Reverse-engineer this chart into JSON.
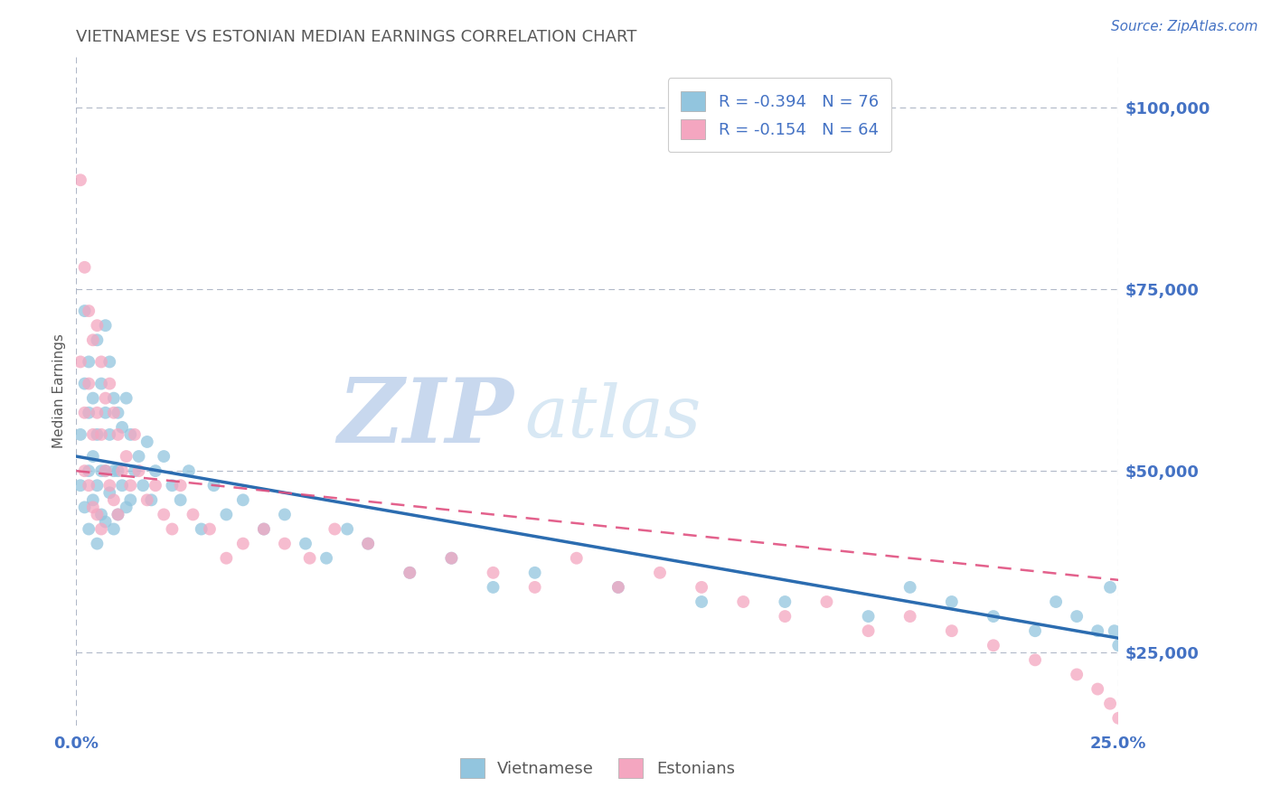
{
  "title": "VIETNAMESE VS ESTONIAN MEDIAN EARNINGS CORRELATION CHART",
  "source_text": "Source: ZipAtlas.com",
  "ylabel": "Median Earnings",
  "xlim": [
    0.0,
    0.25
  ],
  "ylim": [
    15000,
    107000
  ],
  "yticks": [
    25000,
    50000,
    75000,
    100000
  ],
  "ytick_labels": [
    "$25,000",
    "$50,000",
    "$75,000",
    "$100,000"
  ],
  "blue_color": "#92c5de",
  "pink_color": "#f4a6c0",
  "blue_line_color": "#2b6cb0",
  "pink_line_color": "#e05080",
  "axis_color": "#4472c4",
  "grid_color": "#b0b8c8",
  "title_color": "#595959",
  "r1": "-0.394",
  "n1": "76",
  "r2": "-0.154",
  "n2": "64",
  "legend_label1": "Vietnamese",
  "legend_label2": "Estonians",
  "watermark_zip": "ZIP",
  "watermark_atlas": "atlas",
  "watermark_color_zip": "#c8d8ee",
  "watermark_color_atlas": "#d8e8f4",
  "blue_intercept": 52000,
  "blue_slope": -100000,
  "pink_intercept": 50000,
  "pink_slope": -60000,
  "vietnamese_x": [
    0.001,
    0.001,
    0.002,
    0.002,
    0.002,
    0.003,
    0.003,
    0.003,
    0.003,
    0.004,
    0.004,
    0.004,
    0.005,
    0.005,
    0.005,
    0.005,
    0.006,
    0.006,
    0.006,
    0.007,
    0.007,
    0.007,
    0.007,
    0.008,
    0.008,
    0.008,
    0.009,
    0.009,
    0.009,
    0.01,
    0.01,
    0.01,
    0.011,
    0.011,
    0.012,
    0.012,
    0.013,
    0.013,
    0.014,
    0.015,
    0.016,
    0.017,
    0.018,
    0.019,
    0.021,
    0.023,
    0.025,
    0.027,
    0.03,
    0.033,
    0.036,
    0.04,
    0.045,
    0.05,
    0.055,
    0.06,
    0.065,
    0.07,
    0.08,
    0.09,
    0.1,
    0.11,
    0.13,
    0.15,
    0.17,
    0.19,
    0.2,
    0.21,
    0.22,
    0.23,
    0.235,
    0.24,
    0.245,
    0.248,
    0.249,
    0.25
  ],
  "vietnamese_y": [
    55000,
    48000,
    62000,
    45000,
    72000,
    58000,
    50000,
    65000,
    42000,
    60000,
    52000,
    46000,
    68000,
    55000,
    48000,
    40000,
    62000,
    50000,
    44000,
    70000,
    58000,
    50000,
    43000,
    65000,
    55000,
    47000,
    60000,
    50000,
    42000,
    58000,
    50000,
    44000,
    56000,
    48000,
    60000,
    45000,
    55000,
    46000,
    50000,
    52000,
    48000,
    54000,
    46000,
    50000,
    52000,
    48000,
    46000,
    50000,
    42000,
    48000,
    44000,
    46000,
    42000,
    44000,
    40000,
    38000,
    42000,
    40000,
    36000,
    38000,
    34000,
    36000,
    34000,
    32000,
    32000,
    30000,
    34000,
    32000,
    30000,
    28000,
    32000,
    30000,
    28000,
    34000,
    28000,
    26000
  ],
  "estonian_x": [
    0.001,
    0.001,
    0.002,
    0.002,
    0.002,
    0.003,
    0.003,
    0.003,
    0.004,
    0.004,
    0.004,
    0.005,
    0.005,
    0.005,
    0.006,
    0.006,
    0.006,
    0.007,
    0.007,
    0.008,
    0.008,
    0.009,
    0.009,
    0.01,
    0.01,
    0.011,
    0.012,
    0.013,
    0.014,
    0.015,
    0.017,
    0.019,
    0.021,
    0.023,
    0.025,
    0.028,
    0.032,
    0.036,
    0.04,
    0.045,
    0.05,
    0.056,
    0.062,
    0.07,
    0.08,
    0.09,
    0.1,
    0.11,
    0.12,
    0.13,
    0.14,
    0.15,
    0.16,
    0.17,
    0.18,
    0.19,
    0.2,
    0.21,
    0.22,
    0.23,
    0.24,
    0.245,
    0.248,
    0.25
  ],
  "estonian_y": [
    90000,
    65000,
    78000,
    58000,
    50000,
    72000,
    62000,
    48000,
    68000,
    55000,
    45000,
    70000,
    58000,
    44000,
    65000,
    55000,
    42000,
    60000,
    50000,
    62000,
    48000,
    58000,
    46000,
    55000,
    44000,
    50000,
    52000,
    48000,
    55000,
    50000,
    46000,
    48000,
    44000,
    42000,
    48000,
    44000,
    42000,
    38000,
    40000,
    42000,
    40000,
    38000,
    42000,
    40000,
    36000,
    38000,
    36000,
    34000,
    38000,
    34000,
    36000,
    34000,
    32000,
    30000,
    32000,
    28000,
    30000,
    28000,
    26000,
    24000,
    22000,
    20000,
    18000,
    16000
  ]
}
